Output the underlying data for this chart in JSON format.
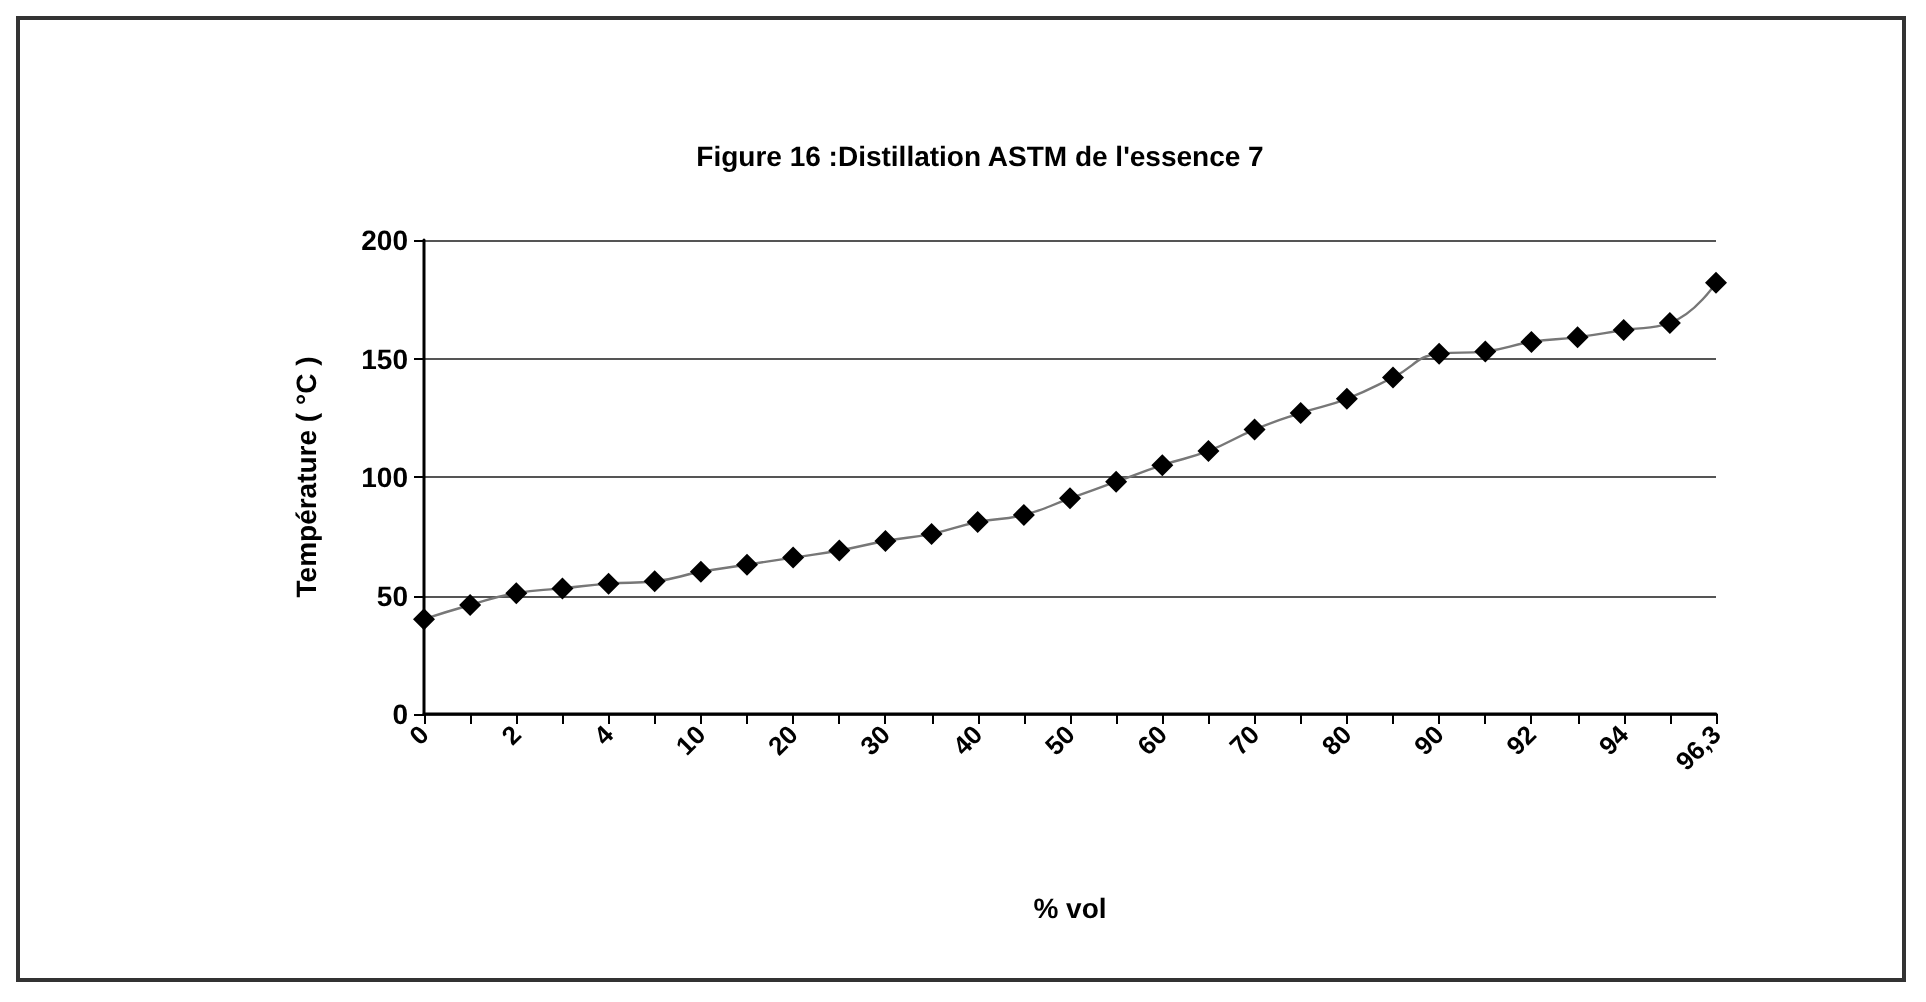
{
  "chart_data": {
    "type": "line",
    "title": "Figure 16 :Distillation ASTM de l'essence 7",
    "xlabel": "% vol",
    "ylabel": "Température ( °C )",
    "categories": [
      "0",
      null,
      "2",
      null,
      "4",
      null,
      "10",
      null,
      "20",
      null,
      "30",
      null,
      "40",
      null,
      "50",
      null,
      "60",
      null,
      "70",
      null,
      "80",
      null,
      "90",
      null,
      "92",
      null,
      "94",
      null,
      "96,3"
    ],
    "series": [
      {
        "color": "#000000",
        "values": [
          40,
          46,
          51,
          53,
          55,
          56,
          60,
          63,
          66,
          69,
          73,
          76,
          81,
          84,
          91,
          98,
          105,
          111,
          120,
          127,
          133,
          142,
          152,
          153,
          157,
          159,
          162,
          165,
          182
        ]
      }
    ],
    "ylim": [
      0,
      200
    ],
    "yticks": [
      0,
      50,
      100,
      150,
      200
    ],
    "grid": "y",
    "marker": "diamond",
    "line_style": "solid"
  }
}
